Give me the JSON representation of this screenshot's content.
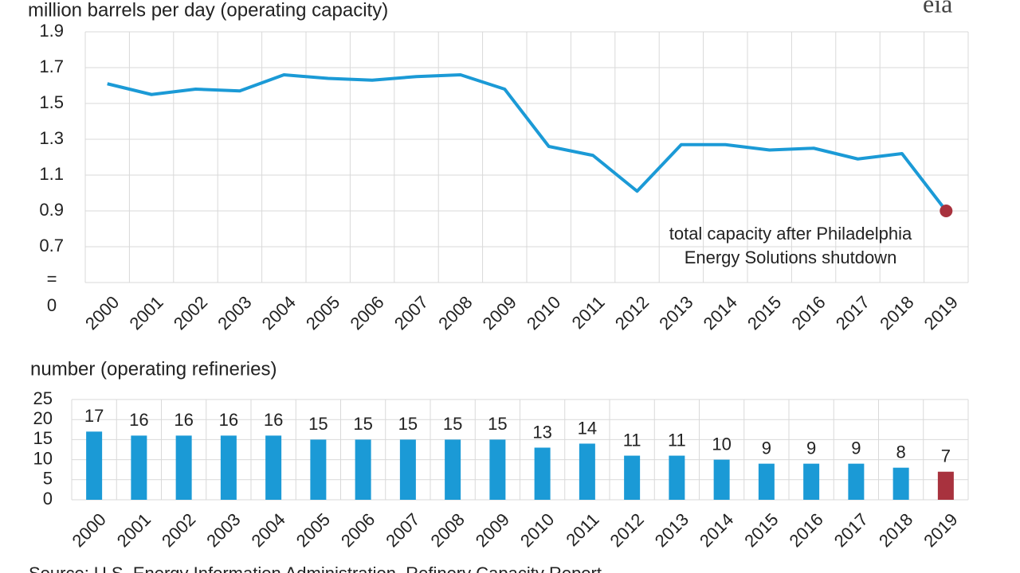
{
  "logo": "eia",
  "source": "Source: U.S. Energy Information Administration, Refinery Capacity Report",
  "chart_data": [
    {
      "type": "line",
      "title": "million barrels per day (operating capacity)",
      "categories": [
        "2000",
        "2001",
        "2002",
        "2003",
        "2004",
        "2005",
        "2006",
        "2007",
        "2008",
        "2009",
        "2010",
        "2011",
        "2012",
        "2013",
        "2014",
        "2015",
        "2016",
        "2017",
        "2018",
        "2019"
      ],
      "values": [
        1.61,
        1.55,
        1.58,
        1.57,
        1.66,
        1.64,
        1.63,
        1.65,
        1.66,
        1.58,
        1.26,
        1.21,
        1.01,
        1.27,
        1.27,
        1.24,
        1.25,
        1.19,
        1.22,
        0.9
      ],
      "color": "#1b9ad6",
      "end_marker_color": "#a8323e",
      "ylim": [
        0.5,
        1.9
      ],
      "yticks": [
        0.7,
        0.9,
        1.1,
        1.3,
        1.5,
        1.7,
        1.9
      ],
      "ybreak": [
        "=",
        "0"
      ],
      "annotation": [
        "total capacity after Philadelphia",
        "Energy Solutions shutdown"
      ],
      "grid": true
    },
    {
      "type": "bar",
      "title": "number (operating refineries)",
      "categories": [
        "2000",
        "2001",
        "2002",
        "2003",
        "2004",
        "2005",
        "2006",
        "2007",
        "2008",
        "2009",
        "2010",
        "2011",
        "2012",
        "2013",
        "2014",
        "2015",
        "2016",
        "2017",
        "2018",
        "2019"
      ],
      "values": [
        17,
        16,
        16,
        16,
        16,
        15,
        15,
        15,
        15,
        15,
        13,
        14,
        11,
        11,
        10,
        9,
        9,
        9,
        8,
        7
      ],
      "colors": [
        "#1b9ad6",
        "#1b9ad6",
        "#1b9ad6",
        "#1b9ad6",
        "#1b9ad6",
        "#1b9ad6",
        "#1b9ad6",
        "#1b9ad6",
        "#1b9ad6",
        "#1b9ad6",
        "#1b9ad6",
        "#1b9ad6",
        "#1b9ad6",
        "#1b9ad6",
        "#1b9ad6",
        "#1b9ad6",
        "#1b9ad6",
        "#1b9ad6",
        "#1b9ad6",
        "#a8323e"
      ],
      "ylim": [
        0,
        25
      ],
      "yticks": [
        0,
        5,
        10,
        15,
        20,
        25
      ],
      "grid": true
    }
  ]
}
